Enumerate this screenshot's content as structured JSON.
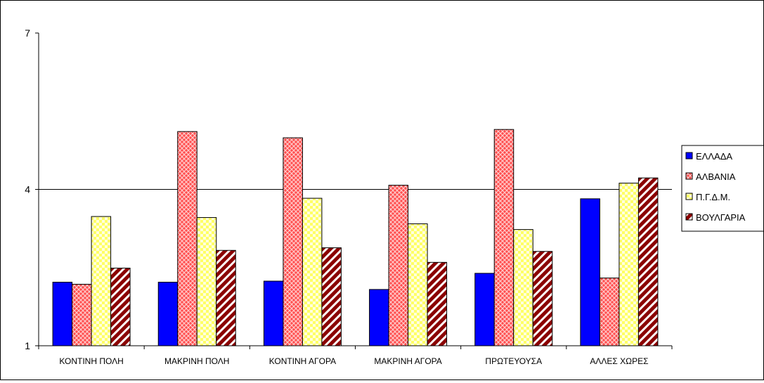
{
  "chart_data": {
    "type": "bar",
    "categories": [
      "ΚΟΝΤΙΝΗ ΠΟΛΗ",
      "ΜΑΚΡΙΝΗ ΠΟΛΗ",
      "ΚΟΝΤΙΝΗ ΑΓΟΡΑ",
      "ΜΑΚΡΙΝΗ ΑΓΟΡΑ",
      "ΠΡΩΤΕΥΟΥΣΑ",
      "ΑΛΛΕΣ ΧΩΡΕΣ"
    ],
    "series": [
      {
        "name": "ΕΛΛΑΔΑ",
        "color": "#0000ff",
        "pattern": "solid",
        "values": [
          2.22,
          2.22,
          2.24,
          2.08,
          2.39,
          3.82
        ]
      },
      {
        "name": "ΑΛΒΑΝΙΑ",
        "color": "#ff5555",
        "pattern": "crosshatch",
        "values": [
          2.18,
          5.11,
          4.99,
          4.08,
          5.15,
          2.3
        ]
      },
      {
        "name": "Π.Γ.Δ.Μ.",
        "color": "#ffff66",
        "pattern": "checker",
        "values": [
          3.48,
          3.46,
          3.83,
          3.34,
          3.23,
          4.12
        ]
      },
      {
        "name": "ΒΟΥΛΓΑΡΙΑ",
        "color": "#8b0000",
        "pattern": "diagonal",
        "values": [
          2.49,
          2.83,
          2.88,
          2.6,
          2.81,
          4.22
        ]
      }
    ],
    "y_ticks": [
      "1",
      "4",
      "7"
    ],
    "ylim": [
      1,
      7
    ],
    "gridlines": [
      4
    ],
    "legend_position": "right"
  }
}
